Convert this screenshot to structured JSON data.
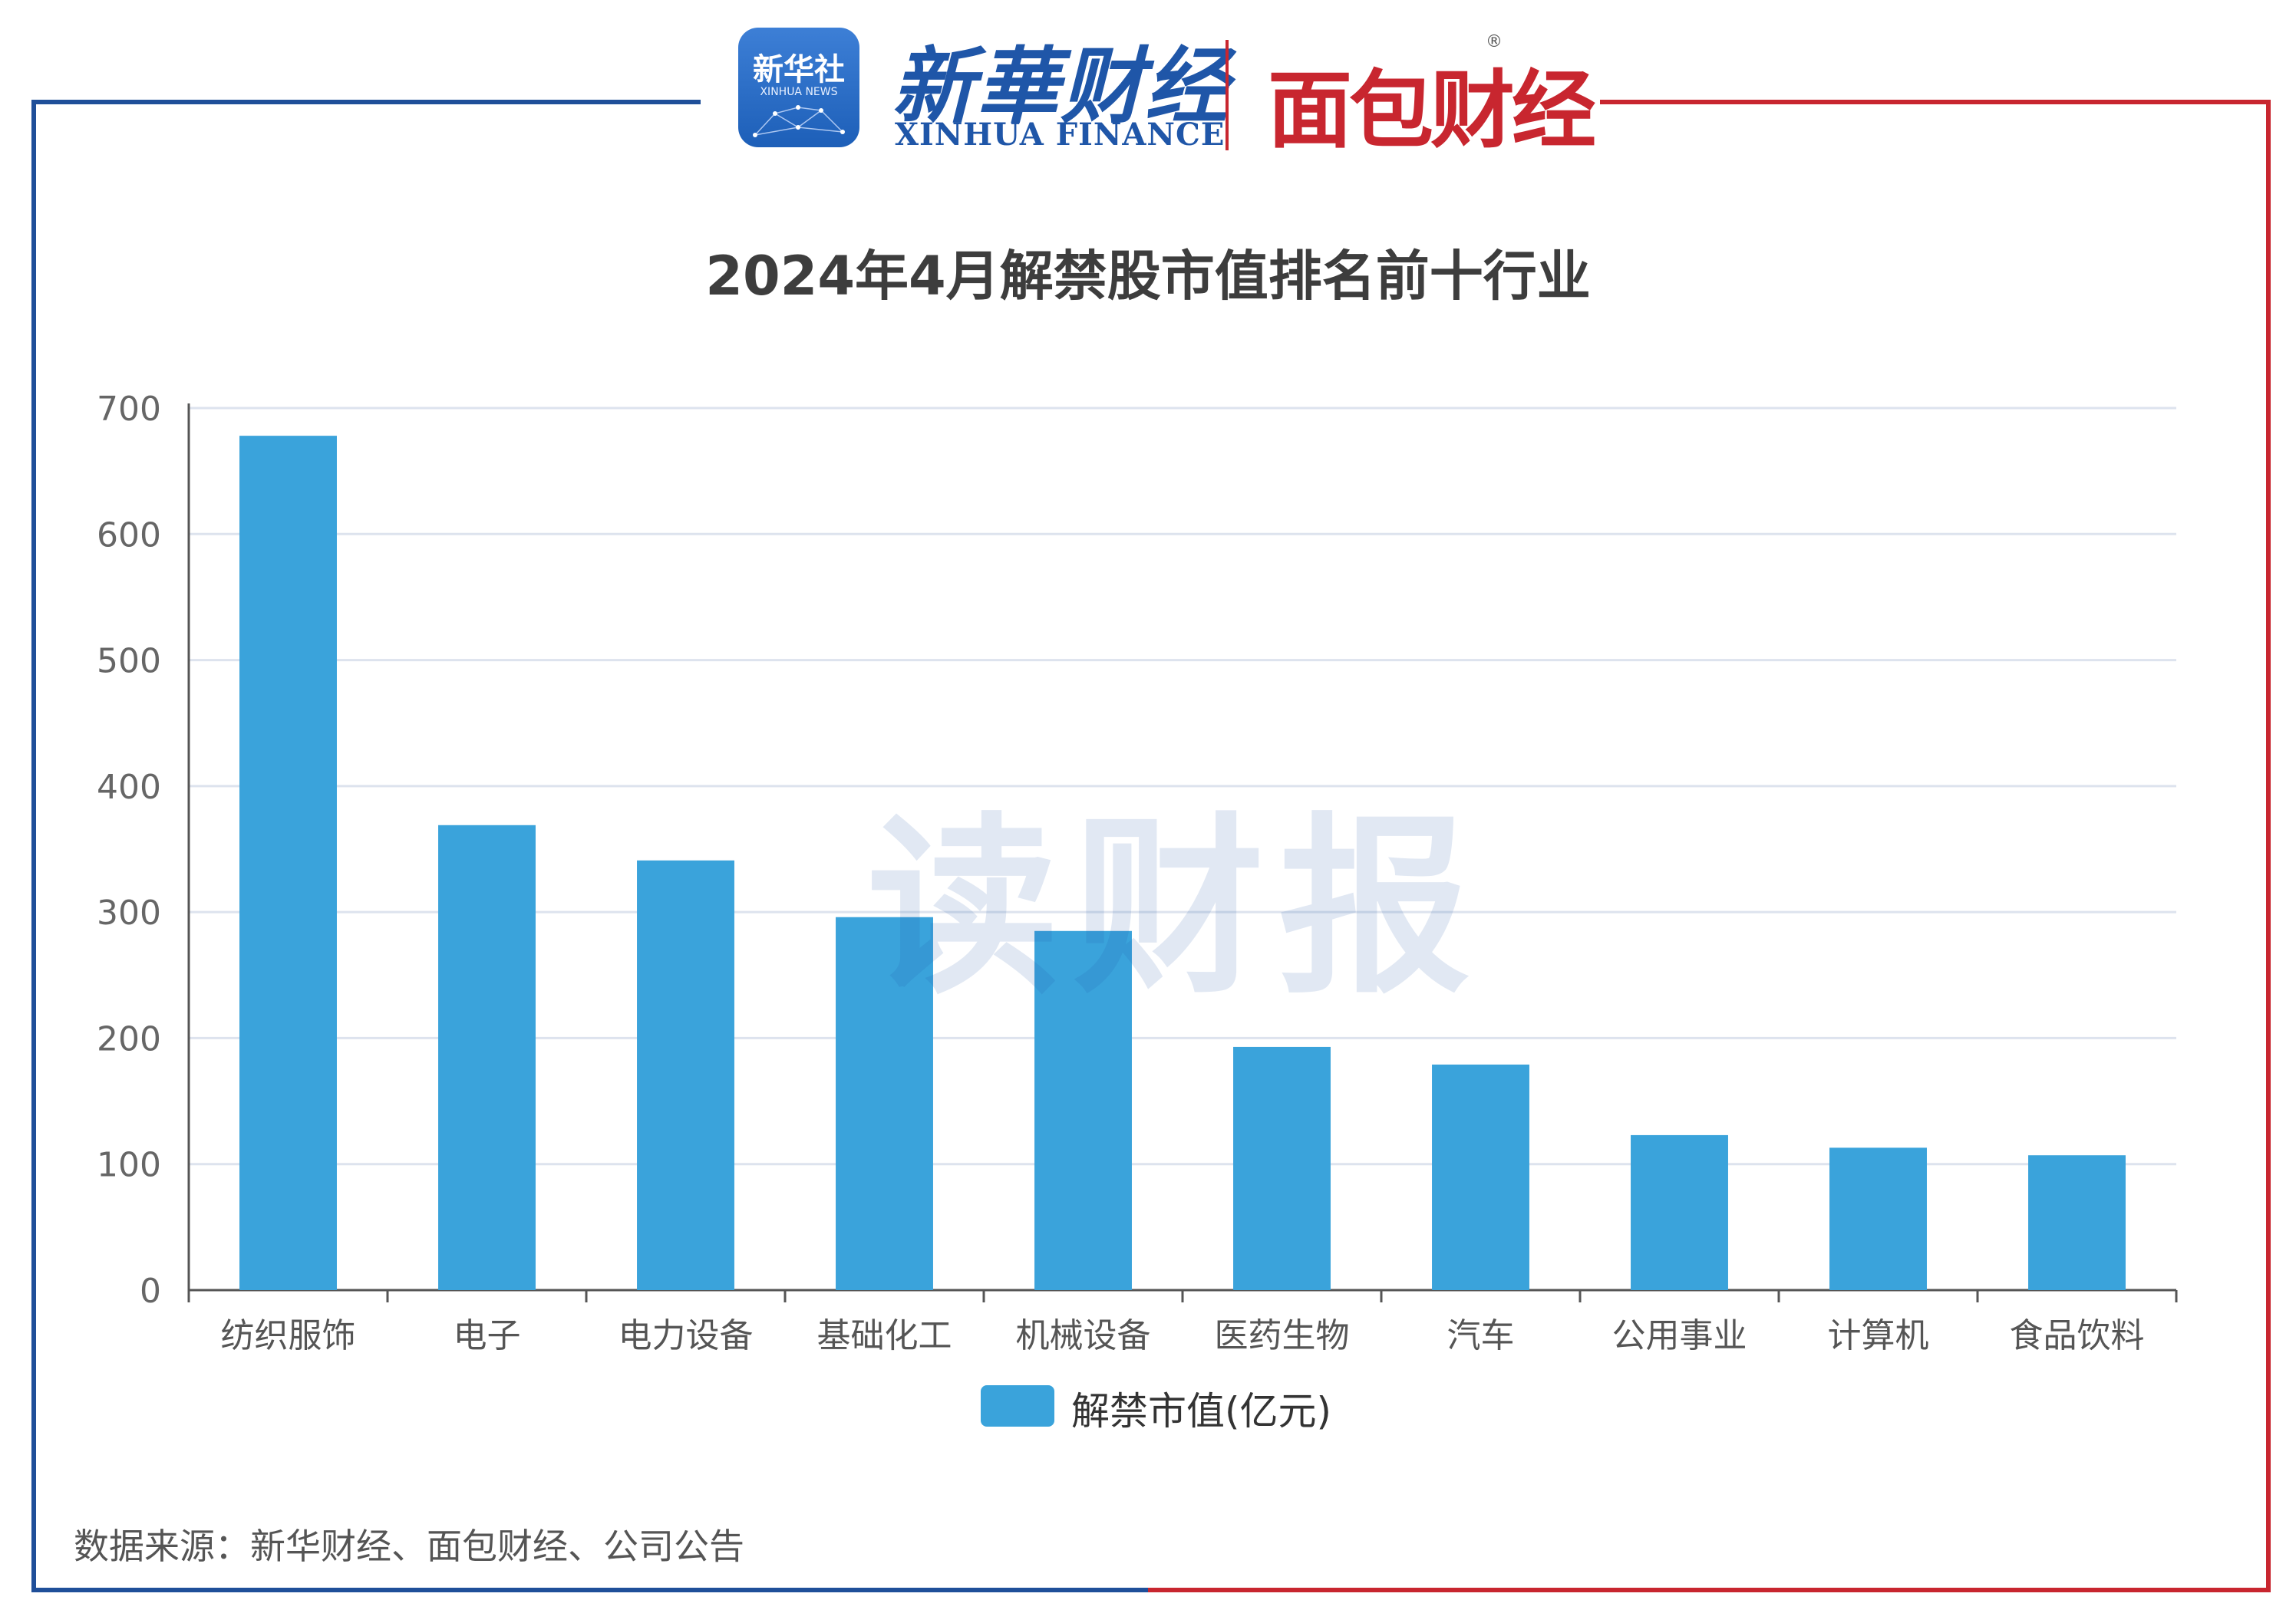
{
  "header": {
    "badge_cn": "新华社",
    "badge_en": "XINHUA NEWS",
    "xinhua_cn": "新華财经",
    "xinhua_en": "XINHUA FINANCE",
    "mianbao": "面包财经",
    "reg_mark": "®"
  },
  "watermark": "读财报",
  "source_note": "数据来源：新华财经、面包财经、公司公告",
  "colors": {
    "bar": "#3aa3db",
    "frame_left": "#1f4f99",
    "frame_right": "#c8262f",
    "grid": "#dde3ee",
    "axis": "#555555"
  },
  "chart_data": {
    "type": "bar",
    "title": "2024年4月解禁股市值排名前十行业",
    "categories": [
      "纺织服饰",
      "电子",
      "电力设备",
      "基础化工",
      "机械设备",
      "医药生物",
      "汽车",
      "公用事业",
      "计算机",
      "食品饮料"
    ],
    "series": [
      {
        "name": "解禁市值(亿元)",
        "values": [
          678,
          369,
          341,
          296,
          285,
          193,
          179,
          123,
          113,
          107
        ]
      }
    ],
    "ylim": [
      0,
      700
    ],
    "yticks": [
      "0",
      "100",
      "200",
      "300",
      "400",
      "500",
      "600",
      "700"
    ],
    "grid": true,
    "legend": "bottom-center",
    "xlabel": "",
    "ylabel": ""
  }
}
